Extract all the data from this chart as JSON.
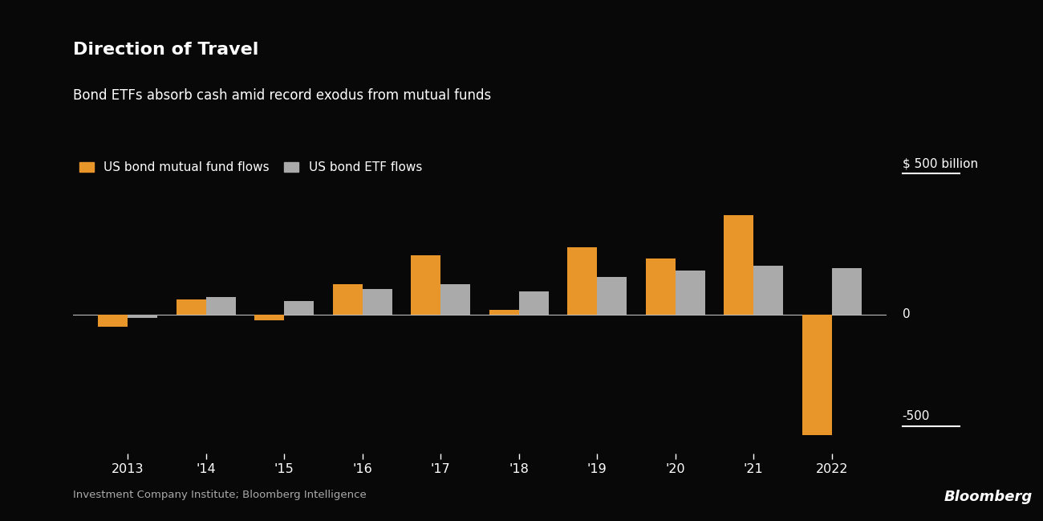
{
  "title_bold": "Direction of Travel",
  "subtitle": "Bond ETFs absorb cash amid record exodus from mutual funds",
  "legend_labels": [
    "US bond mutual fund flows",
    "US bond ETF flows"
  ],
  "mutual_fund_color": "#E8952A",
  "etf_color": "#AAAAAA",
  "background_color": "#080808",
  "text_color": "#FFFFFF",
  "years": [
    2013,
    2014,
    2015,
    2016,
    2017,
    2018,
    2019,
    2020,
    2021,
    2022
  ],
  "year_labels": [
    "2013",
    "'14",
    "'15",
    "'16",
    "'17",
    "'18",
    "'19",
    "'20",
    "'21",
    "2022"
  ],
  "mutual_fund_flows": [
    -55,
    65,
    -25,
    130,
    255,
    20,
    290,
    240,
    430,
    -520
  ],
  "etf_flows": [
    -15,
    75,
    58,
    108,
    130,
    98,
    160,
    190,
    210,
    200
  ],
  "ylim": [
    -600,
    570
  ],
  "source_text": "Investment Company Institute; Bloomberg Intelligence",
  "bloomberg_text": "Bloomberg",
  "bar_width": 0.38,
  "zero_line_color": "#BBBBBB",
  "footnote_color": "#AAAAAA",
  "label_500_text": "$ 500 billion",
  "label_0_text": "0",
  "label_neg500_text": "-500"
}
